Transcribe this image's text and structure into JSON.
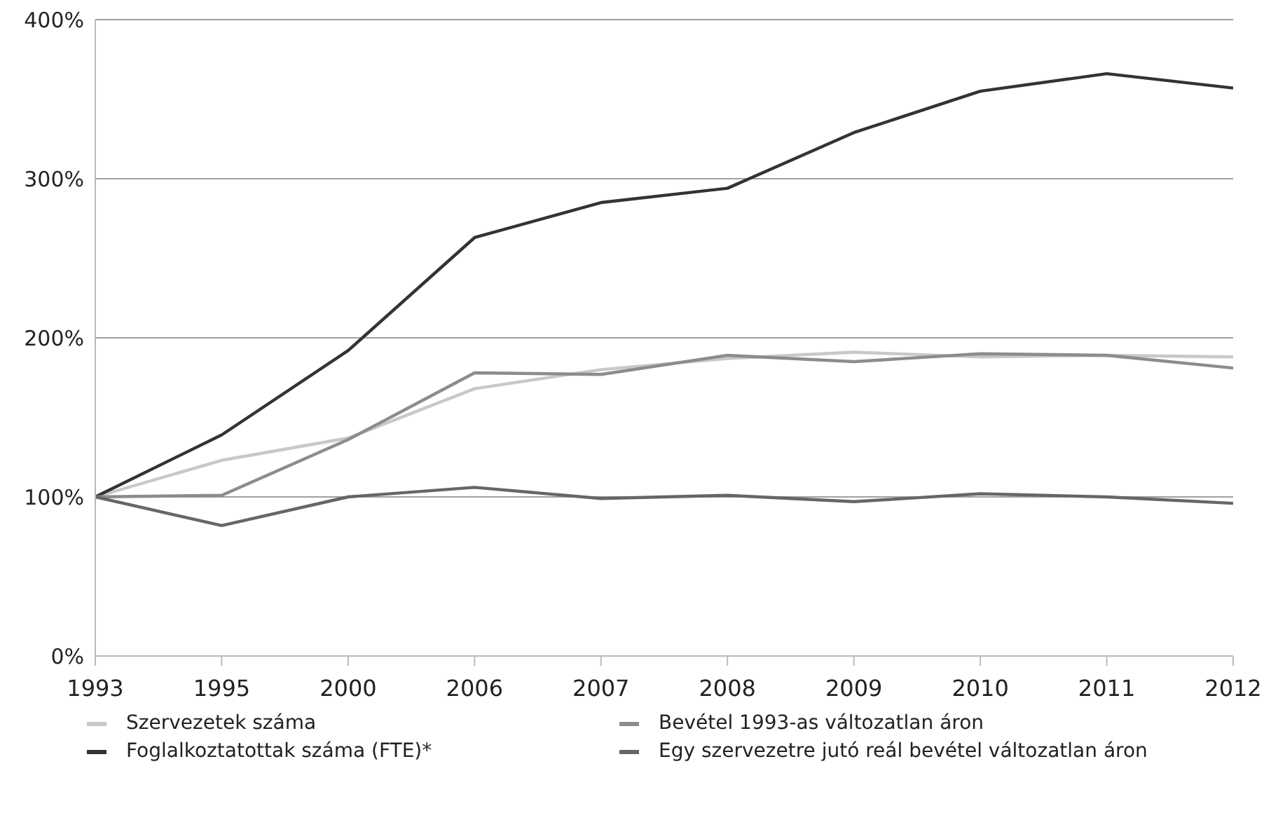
{
  "chart_data": {
    "type": "line",
    "categories": [
      "1993",
      "1995",
      "2000",
      "2006",
      "2007",
      "2008",
      "2009",
      "2010",
      "2011",
      "2012"
    ],
    "series": [
      {
        "name": "Szervezetek száma",
        "color": "#c8c8c8",
        "values": [
          100,
          123,
          137,
          168,
          180,
          187,
          191,
          188,
          189,
          188
        ]
      },
      {
        "name": "Foglalkoztatottak száma (FTE)*",
        "color": "#333333",
        "values": [
          100,
          139,
          192,
          263,
          285,
          294,
          329,
          355,
          366,
          357
        ]
      },
      {
        "name": "Bevétel 1993-as változatlan áron",
        "color": "#8c8c8c",
        "values": [
          100,
          101,
          136,
          178,
          177,
          189,
          185,
          190,
          189,
          181
        ]
      },
      {
        "name": "Egy szervezetre jutó reál bevétel változatlan áron",
        "color": "#666666",
        "values": [
          100,
          82,
          100,
          106,
          99,
          101,
          97,
          102,
          100,
          96
        ]
      }
    ],
    "ylim": [
      0,
      400
    ],
    "yticks": [
      {
        "value": 0,
        "label": "0%"
      },
      {
        "value": 100,
        "label": "100%"
      },
      {
        "value": 200,
        "label": "200%"
      },
      {
        "value": 300,
        "label": "300%"
      },
      {
        "value": 400,
        "label": "400%"
      }
    ],
    "grid": "y",
    "legend": "bottom",
    "marker": "none",
    "line_style": "solid"
  }
}
